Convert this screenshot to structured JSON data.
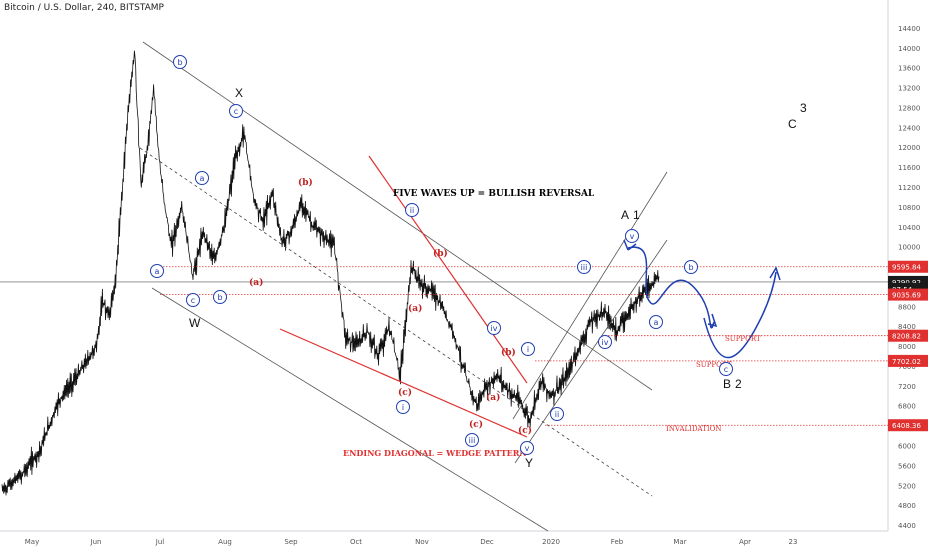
{
  "header": {
    "title": "Bitcoin / U.S. Dollar, 240, BITSTAMP"
  },
  "chart_data": {
    "type": "line",
    "title": "Bitcoin / U.S. Dollar, 240, BITSTAMP",
    "xlabel": "",
    "ylabel": "",
    "x_ticks": [
      "May",
      "Jun",
      "Jul",
      "Aug",
      "Sep",
      "Oct",
      "Nov",
      "Dec",
      "2020",
      "Feb",
      "Mar",
      "Apr",
      "23"
    ],
    "y_ticks": [
      4400,
      4800,
      5200,
      5600,
      6000,
      6400,
      6800,
      7200,
      7600,
      8000,
      8400,
      8800,
      9200,
      9600,
      10000,
      10400,
      10800,
      11200,
      11600,
      12000,
      12400,
      12800,
      13200,
      13600,
      14000,
      14400
    ],
    "ylim": [
      4200,
      14700
    ],
    "price_points": [
      [
        "May",
        5100
      ],
      [
        "May",
        5400
      ],
      [
        "May",
        5900
      ],
      [
        "May",
        6900
      ],
      [
        "May",
        7400
      ],
      [
        "Jun",
        8000
      ],
      [
        "Jun",
        8900
      ],
      [
        "Jun",
        8600
      ],
      [
        "Jun",
        9300
      ],
      [
        "Jun",
        11000
      ],
      [
        "Jun",
        12800
      ],
      [
        "Jun",
        13900
      ],
      [
        "Jun",
        11200
      ],
      [
        "Jun",
        12000
      ],
      [
        "Jun",
        13200
      ],
      [
        "Jul",
        11500
      ],
      [
        "Jul",
        10000
      ],
      [
        "Jul",
        10800
      ],
      [
        "Jul",
        9400
      ],
      [
        "Jul",
        10300
      ],
      [
        "Jul",
        9700
      ],
      [
        "Aug",
        10500
      ],
      [
        "Aug",
        11700
      ],
      [
        "Aug",
        12300
      ],
      [
        "Aug",
        11000
      ],
      [
        "Aug",
        10500
      ],
      [
        "Aug",
        11100
      ],
      [
        "Aug",
        10100
      ],
      [
        "Sep",
        10300
      ],
      [
        "Sep",
        10900
      ],
      [
        "Sep",
        10400
      ],
      [
        "Sep",
        10200
      ],
      [
        "Sep",
        10000
      ],
      [
        "Sep",
        8200
      ],
      [
        "Oct",
        8000
      ],
      [
        "Oct",
        8300
      ],
      [
        "Oct",
        7800
      ],
      [
        "Oct",
        8400
      ],
      [
        "Oct",
        7400
      ],
      [
        "Oct",
        9600
      ],
      [
        "Nov",
        9200
      ],
      [
        "Nov",
        9100
      ],
      [
        "Nov",
        8700
      ],
      [
        "Nov",
        8200
      ],
      [
        "Nov",
        7400
      ],
      [
        "Nov",
        6800
      ],
      [
        "Dec",
        7200
      ],
      [
        "Dec",
        7400
      ],
      [
        "Dec",
        7100
      ],
      [
        "Dec",
        6900
      ],
      [
        "Dec",
        6500
      ],
      [
        "Dec",
        7300
      ],
      [
        "2020",
        7000
      ],
      [
        "2020",
        7300
      ],
      [
        "2020",
        7900
      ],
      [
        "2020",
        8500
      ],
      [
        "2020",
        8700
      ],
      [
        "Feb",
        8300
      ],
      [
        "Feb",
        9000
      ],
      [
        "Feb",
        9400
      ]
    ],
    "price_levels": [
      {
        "label": "9595.84",
        "value": 9595.84,
        "color": "#e0302f"
      },
      {
        "label": "9290.92",
        "value": 9290.92,
        "color": "#1a1a1a"
      },
      {
        "label": "07:54",
        "value": 9150,
        "color": "#1a1a1a"
      },
      {
        "label": "9035.69",
        "value": 9035.69,
        "color": "#e0302f"
      },
      {
        "label": "8208.82",
        "value": 8208.82,
        "color": "#e0302f"
      },
      {
        "label": "7702.02",
        "value": 7702.02,
        "color": "#e0302f"
      },
      {
        "label": "6408.36",
        "value": 6408.36,
        "color": "#e0302f"
      }
    ],
    "annotations": {
      "texts": [
        {
          "text": "FIVE WAVES UP = BULLISH REVERSAL",
          "color": "#000000"
        },
        {
          "text": "ENDING DIAGONAL = WEDGE PATTERN",
          "color": "#e0302f"
        },
        {
          "text": "SUPPORT",
          "color": "#e0302f"
        },
        {
          "text": "SUPPORT",
          "color": "#e0302f"
        },
        {
          "text": "INVALIDATION",
          "color": "#e0302f"
        }
      ],
      "plain_labels": [
        "X",
        "W",
        "Y",
        "A",
        "1",
        "B",
        "2",
        "C",
        "3"
      ],
      "red_labels": [
        "(b)",
        "(a)",
        "(b)",
        "(a)",
        "(c)",
        "(a)",
        "(b)",
        "(c)",
        "(c)"
      ],
      "circle_labels": [
        "b",
        "c",
        "a",
        "a",
        "c",
        "b",
        "ii",
        "iv",
        "i",
        "iii",
        "iii",
        "v",
        "ii",
        "iv",
        "v",
        "i",
        "a",
        "b",
        "c"
      ]
    }
  }
}
